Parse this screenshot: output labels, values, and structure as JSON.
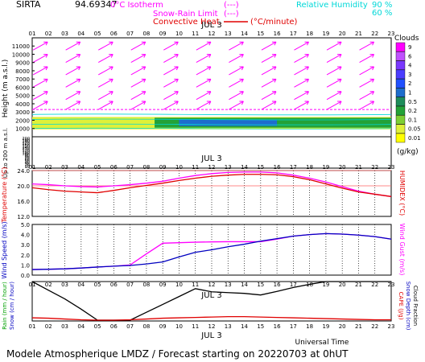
{
  "header": {
    "station": "SIRTA",
    "coords": "94.69347",
    "legend_isotherm": "0°C Isotherm",
    "legend_isotherm_line": "(---)",
    "legend_snow_rain": "Snow-Rain Limit",
    "legend_snow_rain_line": "(---)",
    "legend_convective": "Convective Heat.",
    "legend_convective_unit": "(°C/minute)",
    "legend_rh": "Relative Humidity",
    "rh_90": "90 %",
    "rh_60": "60 %"
  },
  "footer": {
    "model": "Modele Atmospherique LMDZ / Forecast starting on 20220703 at 0hUT",
    "universal_time": "Universal Time",
    "date_label": "JUL  3"
  },
  "hours": [
    "01",
    "02",
    "03",
    "04",
    "05",
    "06",
    "07",
    "08",
    "09",
    "10",
    "11",
    "12",
    "13",
    "14",
    "15",
    "16",
    "17",
    "18",
    "19",
    "20",
    "21",
    "22",
    "23"
  ],
  "colors": {
    "magenta": "#ff00ff",
    "cyan": "#00d8d8",
    "red": "#e00000",
    "blue": "#0000c0",
    "green": "#00a000",
    "pink": "#ff6060"
  },
  "chart_data": [
    {
      "type": "heatmap",
      "name": "clouds",
      "ylabel": "Height (m a.s.l.)",
      "ylabel_low": "Up to 200 m a.s.l.",
      "yticks_upper": [
        1000,
        2000,
        3000,
        4000,
        5000,
        6000,
        7000,
        8000,
        9000,
        10000,
        11000
      ],
      "yticks_lower": [
        10,
        20,
        30,
        40,
        50,
        60,
        70,
        80,
        90,
        100,
        110,
        120,
        130,
        140,
        150,
        160,
        170,
        180,
        190,
        200
      ],
      "legend_title": "Clouds",
      "legend_unit": "(g/kg)",
      "legend_levels": [
        "9",
        "6",
        "4",
        "3",
        "2",
        "1",
        "0.5",
        "0.2",
        "0.1",
        "0.05",
        "0.01"
      ],
      "legend_colors": [
        "#ff00ff",
        "#c050ff",
        "#7a37ff",
        "#4a3cff",
        "#2050ff",
        "#1e6dcc",
        "#1e8c5a",
        "#23a237",
        "#7ecf33",
        "#dff039",
        "#ffff00"
      ],
      "cloud_layers": [
        {
          "x_start": 1.0,
          "x_end": 23.0,
          "z_bottom": 900,
          "z_top": 2400,
          "level": "0.05"
        },
        {
          "x_start": 8.5,
          "x_end": 23.0,
          "z_bottom": 1100,
          "z_top": 2300,
          "level": "0.2"
        },
        {
          "x_start": 10.0,
          "x_end": 16.0,
          "z_bottom": 1300,
          "z_top": 2100,
          "level": "1"
        }
      ],
      "isotherm_0c_m": 3300,
      "wind_arrows_upper": true
    },
    {
      "type": "line",
      "name": "temperature",
      "ylabel": "Temperature (°C)",
      "ylabel_right": "HUMIDEX (°C)",
      "ylim": [
        12,
        24
      ],
      "yticks": [
        12.0,
        16.0,
        20.0,
        24.0
      ],
      "x": [
        1,
        2,
        3,
        4,
        5,
        6,
        7,
        8,
        9,
        10,
        11,
        12,
        13,
        14,
        15,
        16,
        17,
        18,
        19,
        20,
        21,
        22,
        23
      ],
      "series": [
        {
          "values": [
            20.5,
            20.3,
            20.0,
            19.8,
            19.7,
            20.0,
            20.3,
            20.7,
            21.2,
            22.0,
            22.7,
            23.2,
            23.5,
            23.6,
            23.6,
            23.4,
            22.8,
            22.0,
            21.0,
            19.8,
            18.6,
            17.8,
            17.2
          ]
        },
        {
          "values": [
            19.5,
            19.0,
            18.6,
            18.4,
            18.2,
            18.8,
            19.5,
            20.1,
            20.7,
            21.4,
            22.0,
            22.5,
            22.8,
            23.0,
            23.0,
            22.9,
            22.4,
            21.6,
            20.5,
            19.4,
            18.4,
            17.8,
            17.2
          ]
        }
      ],
      "hlines": [
        20.0,
        24.0
      ]
    },
    {
      "type": "line",
      "name": "wind",
      "ylabel": "Wind Speed (m/s)",
      "ylabel_right": "Wind Gust (m/s)",
      "ylim": [
        0,
        5
      ],
      "yticks": [
        0.0,
        1.0,
        2.0,
        3.0,
        4.0,
        5.0
      ],
      "x": [
        1,
        2,
        3,
        4,
        5,
        6,
        7,
        8,
        9,
        10,
        11,
        12,
        13,
        14,
        15,
        16,
        17,
        18,
        19,
        20,
        21,
        22,
        23
      ],
      "series": [
        {
          "values": [
            0.55,
            0.58,
            0.62,
            0.7,
            0.8,
            0.88,
            0.95,
            1.1,
            1.3,
            1.8,
            2.25,
            2.5,
            2.8,
            3.05,
            3.35,
            3.6,
            3.85,
            4.0,
            4.1,
            4.05,
            3.95,
            3.8,
            3.55
          ]
        },
        {
          "values": [
            0.55,
            0.58,
            0.62,
            0.7,
            0.8,
            0.88,
            1.0,
            2.1,
            3.15,
            3.2,
            3.25,
            3.28,
            3.3,
            3.3,
            3.3,
            3.55,
            3.85,
            4.0,
            4.1,
            4.05,
            3.95,
            3.8,
            3.55
          ]
        }
      ]
    },
    {
      "type": "line",
      "name": "rain_snow",
      "ylabel": "Rain (mm / hour)",
      "ylabel2": "Snow (cm / hour)",
      "ylabel_right": "CAPE (J/g)",
      "ylabel_right2": "Snow Depth (cm)",
      "ylabel_right3": "Cloud Fraction",
      "ylim": [
        0,
        1
      ],
      "x": [
        1,
        2,
        3,
        4,
        5,
        6,
        7,
        8,
        9,
        10,
        11,
        12,
        13,
        14,
        15,
        16,
        17,
        18,
        19,
        20,
        21,
        22,
        23
      ],
      "series": [
        {
          "values": [
            1.0,
            0.78,
            0.56,
            0.3,
            0.02,
            0.02,
            0.02,
            0.22,
            0.42,
            0.62,
            0.82,
            0.74,
            0.72,
            0.7,
            0.66,
            0.75,
            0.85,
            0.93,
            1.0,
            1.0,
            1.0,
            1.0,
            1.0
          ]
        },
        {
          "values": [
            0.08,
            0.07,
            0.05,
            0.03,
            0.02,
            0.02,
            0.03,
            0.05,
            0.07,
            0.08,
            0.09,
            0.1,
            0.11,
            0.11,
            0.1,
            0.09,
            0.08,
            0.07,
            0.06,
            0.05,
            0.04,
            0.03,
            0.03
          ]
        }
      ]
    }
  ]
}
